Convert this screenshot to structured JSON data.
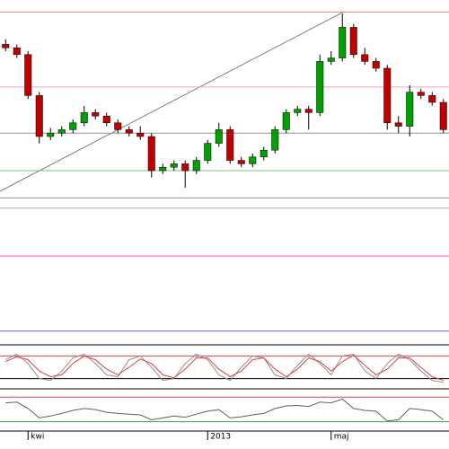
{
  "chart_data": [
    {
      "type": "candlestick",
      "categories": [
        null,
        null,
        "kwi",
        null,
        null,
        null,
        null,
        null,
        null,
        null,
        null,
        null,
        null,
        null,
        null,
        null,
        null,
        null,
        "2013",
        null,
        null,
        null,
        null,
        null,
        null,
        null,
        null,
        null,
        null,
        "maj",
        null,
        null,
        null,
        null,
        null,
        null,
        null,
        null,
        null,
        null
      ],
      "open": [
        87,
        86,
        84,
        72,
        60,
        61,
        62,
        64,
        67,
        66,
        64,
        62,
        61,
        60,
        50,
        51,
        52,
        50,
        53,
        58,
        62,
        53,
        52,
        54,
        56,
        62,
        67,
        68,
        67,
        82,
        83,
        92,
        84,
        82,
        80,
        64,
        63,
        73,
        72,
        70
      ],
      "high": [
        88.5,
        87,
        85,
        73,
        62.5,
        63,
        65,
        69,
        68,
        67,
        65,
        63,
        63,
        61,
        52,
        53,
        53,
        54,
        59,
        64,
        63,
        54,
        55,
        57,
        63,
        68,
        69,
        69,
        84,
        85,
        96,
        93,
        86,
        83,
        81,
        66,
        75,
        74,
        73,
        71
      ],
      "low": [
        85,
        83,
        71,
        58,
        59,
        60,
        61,
        63,
        65,
        63,
        61,
        60,
        59,
        48,
        49,
        50,
        45,
        49,
        52,
        57,
        52,
        51,
        51,
        53,
        55,
        61,
        66,
        62,
        66,
        81,
        82,
        83,
        81,
        79,
        62,
        61,
        60,
        71,
        69,
        61
      ],
      "close": [
        86,
        84,
        72,
        60,
        61,
        62,
        64,
        67,
        66,
        64,
        62,
        61,
        60,
        50,
        51,
        52,
        50,
        53,
        58,
        62,
        53,
        52,
        54,
        56,
        62,
        67,
        68,
        67,
        82,
        83,
        92,
        84,
        82,
        80,
        64,
        63,
        73,
        72,
        70,
        62
      ],
      "up_color": "#00a000",
      "down_color": "#c00000",
      "ylim": [
        0,
        100
      ],
      "levels": [
        {
          "value": 96.5,
          "color": "#f08080"
        },
        {
          "value": 74.5,
          "color": "#f0a0c0"
        },
        {
          "value": 61,
          "color": "#909090"
        },
        {
          "value": 50,
          "color": "#80c080"
        },
        {
          "value": 42,
          "color": "#909090"
        },
        {
          "value": 39,
          "color": "#c0a0a0"
        },
        {
          "value": 25,
          "color": "#ff40ff"
        },
        {
          "value": 3,
          "color": "#6060e0"
        }
      ]
    },
    {
      "type": "line",
      "ylim": [
        0,
        100
      ],
      "series": [
        {
          "color": "#909090",
          "values": [
            70,
            85,
            60,
            20,
            15,
            40,
            75,
            85,
            60,
            30,
            25,
            70,
            80,
            50,
            15,
            20,
            60,
            85,
            70,
            30,
            15,
            50,
            80,
            75,
            30,
            20,
            55,
            85,
            60,
            30,
            80,
            85,
            40,
            20,
            60,
            85,
            70,
            40,
            15,
            10
          ]
        },
        {
          "color": "#e04040",
          "values": [
            65,
            78,
            70,
            40,
            25,
            30,
            60,
            80,
            70,
            45,
            30,
            50,
            72,
            60,
            30,
            22,
            45,
            75,
            75,
            45,
            25,
            40,
            70,
            75,
            45,
            25,
            45,
            75,
            65,
            40,
            65,
            82,
            55,
            30,
            45,
            75,
            75,
            50,
            25,
            15
          ]
        }
      ],
      "levels": [
        {
          "value": 80,
          "color": "#e04040"
        },
        {
          "value": 20,
          "color": "#000000"
        }
      ]
    },
    {
      "type": "line",
      "ylim": [
        0,
        100
      ],
      "series": [
        {
          "color": "#606060",
          "values": [
            70,
            72,
            55,
            30,
            35,
            42,
            50,
            55,
            52,
            45,
            42,
            40,
            38,
            25,
            30,
            35,
            32,
            40,
            48,
            52,
            30,
            33,
            38,
            42,
            55,
            62,
            63,
            60,
            72,
            70,
            80,
            55,
            50,
            48,
            22,
            25,
            55,
            52,
            48,
            25
          ]
        }
      ],
      "levels": [
        {
          "value": 85,
          "color": "#e04040"
        },
        {
          "value": 20,
          "color": "#40a040"
        }
      ]
    }
  ]
}
